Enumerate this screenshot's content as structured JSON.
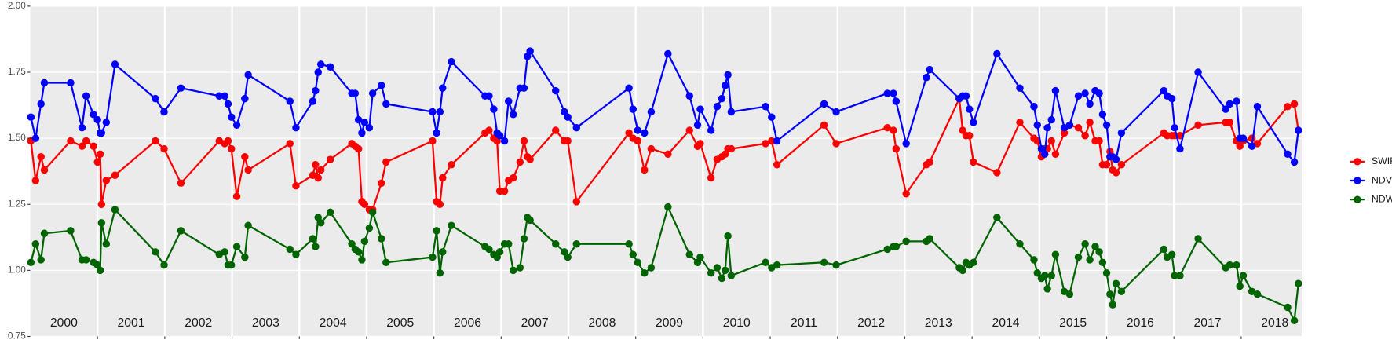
{
  "chart_data": {
    "type": "line",
    "legend": "right",
    "grid": true,
    "xlim": [
      2000,
      2018.9
    ],
    "ylim": [
      0.75,
      2
    ],
    "yticks": [
      0.75,
      {
        "value": 1,
        "label": "1.00"
      },
      1.25,
      {
        "value": 1.5,
        "label": "1.50"
      },
      1.75,
      {
        "value": 2,
        "label": "2.00"
      }
    ],
    "xticks": [
      2001,
      2002,
      2003,
      2004,
      2005,
      2006,
      2007,
      2008,
      2009,
      2010,
      2011,
      2012,
      2013,
      2014,
      2015,
      2016,
      2017,
      2018
    ],
    "xlabels": [
      {
        "value": 2000.5,
        "label": "2000"
      },
      {
        "value": 2001.5,
        "label": "2001"
      },
      {
        "value": 2002.5,
        "label": "2002"
      },
      {
        "value": 2003.5,
        "label": "2003"
      },
      {
        "value": 2004.5,
        "label": "2004"
      },
      {
        "value": 2005.5,
        "label": "2005"
      },
      {
        "value": 2006.5,
        "label": "2006"
      },
      {
        "value": 2007.5,
        "label": "2007"
      },
      {
        "value": 2008.5,
        "label": "2008"
      },
      {
        "value": 2009.5,
        "label": "2009"
      },
      {
        "value": 2010.5,
        "label": "2010"
      },
      {
        "value": 2011.5,
        "label": "2011"
      },
      {
        "value": 2012.5,
        "label": "2012"
      },
      {
        "value": 2013.5,
        "label": "2013"
      },
      {
        "value": 2014.5,
        "label": "2014"
      },
      {
        "value": 2015.5,
        "label": "2015"
      },
      {
        "value": 2016.5,
        "label": "2016"
      },
      {
        "value": 2017.5,
        "label": "2017"
      },
      {
        "value": 2018.5,
        "label": "2018"
      }
    ],
    "x": [
      2000.01,
      2000.08,
      2000.16,
      2000.21,
      2000.6,
      2000.77,
      2000.83,
      2000.94,
      2001.0,
      2001.04,
      2001.06,
      2001.13,
      2001.26,
      2001.86,
      2001.99,
      2002.24,
      2002.81,
      2002.89,
      2002.94,
      2002.99,
      2003.07,
      2003.19,
      2003.24,
      2003.86,
      2003.95,
      2004.2,
      2004.24,
      2004.28,
      2004.32,
      2004.46,
      2004.78,
      2004.83,
      2004.88,
      2004.93,
      2004.97,
      2005.04,
      2005.09,
      2005.22,
      2005.29,
      2005.98,
      2006.04,
      2006.09,
      2006.13,
      2006.26,
      2006.76,
      2006.82,
      2006.89,
      2006.94,
      2006.98,
      2007.05,
      2007.11,
      2007.18,
      2007.28,
      2007.34,
      2007.39,
      2007.43,
      2007.81,
      2007.94,
      2007.99,
      2008.12,
      2008.9,
      2008.96,
      2009.03,
      2009.13,
      2009.23,
      2009.48,
      2009.8,
      2009.92,
      2009.96,
      2010.12,
      2010.21,
      2010.28,
      2010.33,
      2010.37,
      2010.42,
      2010.93,
      2011.02,
      2011.1,
      2011.8,
      2011.98,
      2012.74,
      2012.83,
      2012.87,
      2013.02,
      2013.32,
      2013.37,
      2013.81,
      2013.86,
      2013.91,
      2013.96,
      2014.02,
      2014.37,
      2014.71,
      2014.92,
      2014.97,
      2015.03,
      2015.08,
      2015.12,
      2015.18,
      2015.24,
      2015.37,
      2015.45,
      2015.58,
      2015.68,
      2015.75,
      2015.83,
      2015.89,
      2015.94,
      2016.0,
      2016.05,
      2016.09,
      2016.14,
      2016.22,
      2016.85,
      2016.9,
      2016.97,
      2017.01,
      2017.09,
      2017.36,
      2017.77,
      2017.83,
      2017.93,
      2017.98,
      2018.03,
      2018.16,
      2018.24,
      2018.69,
      2018.79,
      2018.85
    ],
    "series": [
      {
        "name": "SWIR",
        "color": "#ff0000",
        "values": [
          1.49,
          1.34,
          1.43,
          1.38,
          1.49,
          1.47,
          1.49,
          1.47,
          1.41,
          1.44,
          1.25,
          1.34,
          1.36,
          1.49,
          1.46,
          1.33,
          1.49,
          1.48,
          1.49,
          1.46,
          1.28,
          1.43,
          1.38,
          1.48,
          1.32,
          1.36,
          1.4,
          1.35,
          1.38,
          1.42,
          1.48,
          1.47,
          1.46,
          1.26,
          1.25,
          1.23,
          1.23,
          1.33,
          1.41,
          1.49,
          1.26,
          1.25,
          1.35,
          1.4,
          1.52,
          1.53,
          1.5,
          1.49,
          1.3,
          1.3,
          1.34,
          1.35,
          1.41,
          1.49,
          1.43,
          1.42,
          1.53,
          1.49,
          1.49,
          1.26,
          1.52,
          1.5,
          1.49,
          1.38,
          1.46,
          1.44,
          1.53,
          1.47,
          1.48,
          1.35,
          1.42,
          1.43,
          1.44,
          1.46,
          1.46,
          1.48,
          1.49,
          1.4,
          1.55,
          1.48,
          1.54,
          1.53,
          1.46,
          1.29,
          1.4,
          1.41,
          1.65,
          1.53,
          1.51,
          1.51,
          1.41,
          1.37,
          1.56,
          1.5,
          1.49,
          1.43,
          1.46,
          1.46,
          1.49,
          1.44,
          1.52,
          1.55,
          1.54,
          1.51,
          1.56,
          1.49,
          1.49,
          1.4,
          1.4,
          1.45,
          1.38,
          1.37,
          1.4,
          1.52,
          1.51,
          1.51,
          1.51,
          1.51,
          1.55,
          1.56,
          1.56,
          1.49,
          1.47,
          1.49,
          1.5,
          1.48,
          1.62,
          1.63,
          1.53
        ]
      },
      {
        "name": "NDVI",
        "color": "#0000ff",
        "values": [
          1.58,
          1.5,
          1.63,
          1.71,
          1.71,
          1.54,
          1.66,
          1.59,
          1.57,
          1.52,
          1.52,
          1.56,
          1.78,
          1.65,
          1.6,
          1.69,
          1.66,
          1.66,
          1.63,
          1.58,
          1.55,
          1.65,
          1.74,
          1.64,
          1.54,
          1.64,
          1.68,
          1.75,
          1.78,
          1.77,
          1.67,
          1.67,
          1.57,
          1.52,
          1.56,
          1.54,
          1.67,
          1.7,
          1.63,
          1.6,
          1.52,
          1.6,
          1.69,
          1.79,
          1.66,
          1.66,
          1.61,
          1.52,
          1.51,
          1.49,
          1.64,
          1.59,
          1.69,
          1.69,
          1.81,
          1.83,
          1.68,
          1.6,
          1.58,
          1.54,
          1.69,
          1.61,
          1.53,
          1.52,
          1.6,
          1.82,
          1.66,
          1.55,
          1.61,
          1.53,
          1.62,
          1.65,
          1.7,
          1.74,
          1.6,
          1.62,
          1.58,
          1.49,
          1.63,
          1.6,
          1.67,
          1.67,
          1.64,
          1.48,
          1.73,
          1.76,
          1.65,
          1.66,
          1.66,
          1.61,
          1.56,
          1.82,
          1.69,
          1.62,
          1.55,
          1.46,
          1.44,
          1.54,
          1.57,
          1.68,
          1.54,
          1.55,
          1.66,
          1.67,
          1.63,
          1.68,
          1.67,
          1.59,
          1.55,
          1.43,
          1.43,
          1.42,
          1.52,
          1.68,
          1.66,
          1.65,
          1.54,
          1.46,
          1.75,
          1.61,
          1.63,
          1.64,
          1.5,
          1.5,
          1.47,
          1.62,
          1.44,
          1.41,
          1.53
        ]
      },
      {
        "name": "NDWI",
        "color": "#006400",
        "values": [
          1.03,
          1.1,
          1.04,
          1.14,
          1.15,
          1.04,
          1.04,
          1.03,
          1.02,
          1.0,
          1.18,
          1.1,
          1.23,
          1.07,
          1.02,
          1.15,
          1.06,
          1.07,
          1.02,
          1.02,
          1.09,
          1.05,
          1.17,
          1.08,
          1.06,
          1.12,
          1.09,
          1.2,
          1.18,
          1.22,
          1.1,
          1.08,
          1.07,
          1.04,
          1.11,
          1.16,
          1.22,
          1.12,
          1.03,
          1.05,
          1.15,
          0.99,
          1.07,
          1.17,
          1.09,
          1.08,
          1.06,
          1.05,
          1.07,
          1.1,
          1.1,
          1.0,
          1.01,
          1.12,
          1.2,
          1.19,
          1.1,
          1.07,
          1.05,
          1.1,
          1.1,
          1.06,
          1.03,
          0.99,
          1.01,
          1.24,
          1.06,
          1.03,
          1.05,
          0.99,
          1.01,
          0.97,
          1.0,
          1.13,
          0.98,
          1.03,
          1.01,
          1.02,
          1.03,
          1.02,
          1.08,
          1.09,
          1.09,
          1.11,
          1.11,
          1.12,
          1.01,
          1.0,
          1.03,
          1.02,
          1.03,
          1.2,
          1.1,
          1.04,
          0.99,
          0.97,
          0.98,
          0.93,
          0.98,
          1.06,
          0.92,
          0.91,
          1.05,
          1.1,
          1.04,
          1.09,
          1.07,
          1.03,
          0.99,
          0.91,
          0.87,
          0.95,
          0.92,
          1.08,
          1.05,
          1.06,
          0.98,
          0.98,
          1.12,
          1.01,
          1.02,
          1.02,
          0.94,
          0.98,
          0.92,
          0.91,
          0.86,
          0.81,
          0.95
        ]
      }
    ]
  }
}
